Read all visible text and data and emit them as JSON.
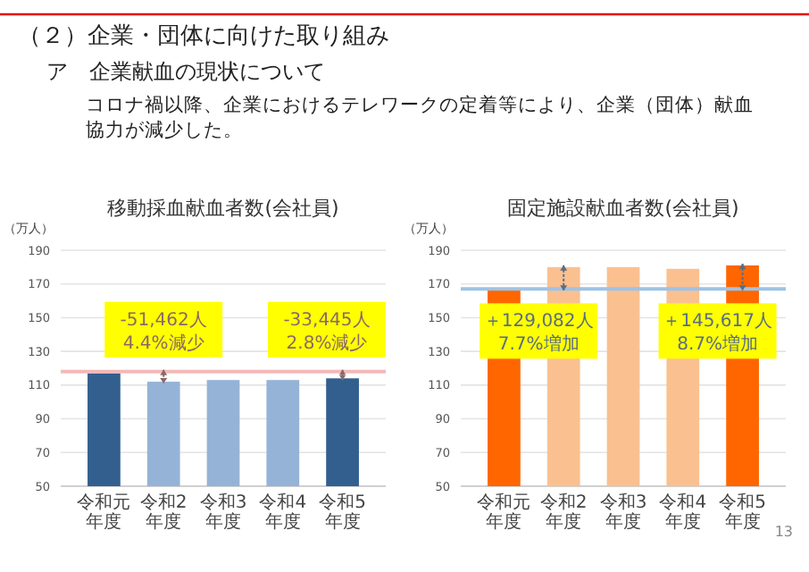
{
  "chart_data": [
    {
      "type": "other",
      "title": "（２）企業・団体に向けた取り組み",
      "subtitle": "ア　企業献血の現状について",
      "annotations": [
        "コロナ禍以降、企業におけるテレワークの定着等により、企業（団体）献血協力が減少した。",
        "13"
      ]
    },
    {
      "type": "bar",
      "title": "移動採血献血者数(会社員)",
      "ylabel": "（万人）",
      "categories": [
        "令和元年度",
        "令和2年度",
        "令和3年度",
        "令和4年度",
        "令和5年度"
      ],
      "values": [
        117,
        112,
        113,
        113,
        114
      ],
      "colors": [
        "#335f8f",
        "#95b3d7",
        "#95b3d7",
        "#95b3d7",
        "#335f8f"
      ],
      "ylim": [
        50,
        190
      ],
      "yticks": [
        50,
        70,
        90,
        110,
        130,
        150,
        170,
        190
      ],
      "grid": "y",
      "ref_lines": [
        {
          "axis": "y",
          "value": 118,
          "color": "#f4b8b8"
        }
      ],
      "annotations": [
        {
          "text": "-51,462人\n4.4%減少",
          "x": "令和2年度",
          "y": 112
        },
        {
          "text": "-33,445人\n2.8%減少",
          "x": "令和5年度",
          "y": 114
        }
      ]
    },
    {
      "type": "bar",
      "title": "固定施設献血者数(会社員)",
      "ylabel": "（万人）",
      "categories": [
        "令和元年度",
        "令和2年度",
        "令和3年度",
        "令和4年度",
        "令和5年度"
      ],
      "values": [
        167,
        180,
        180,
        179,
        181
      ],
      "colors": [
        "#ff6600",
        "#fac090",
        "#fac090",
        "#fac090",
        "#ff6600"
      ],
      "ylim": [
        50,
        190
      ],
      "yticks": [
        50,
        70,
        90,
        110,
        130,
        150,
        170,
        190
      ],
      "grid": "y",
      "ref_lines": [
        {
          "axis": "y",
          "value": 167,
          "color": "#9dc3e6"
        }
      ],
      "annotations": [
        {
          "text": "＋129,082人\n7.7%増加",
          "x": "令和2年度",
          "y": 180
        },
        {
          "text": "＋145,617人\n8.7%増加",
          "x": "令和5年度",
          "y": 181
        }
      ]
    }
  ]
}
